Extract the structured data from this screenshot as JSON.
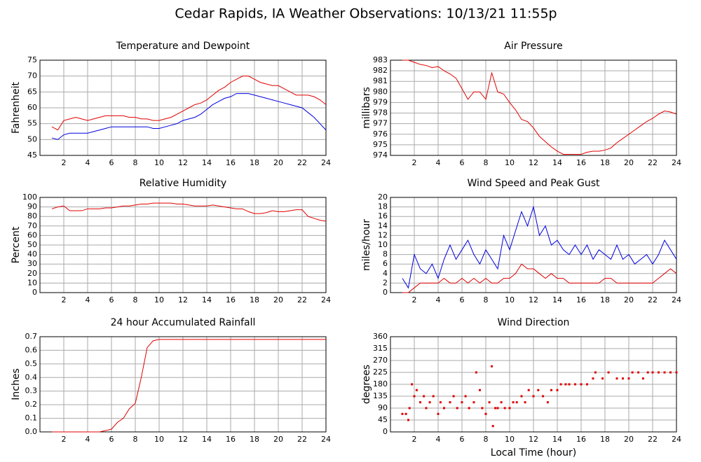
{
  "title": "Cedar Rapids, IA Weather Observations: 10/13/21 11:55p",
  "chart_data": [
    {
      "type": "line",
      "title": "Temperature and Dewpoint",
      "ylabel": "Fahrenheit",
      "x": [
        1,
        1.5,
        2,
        2.5,
        3,
        3.5,
        4,
        4.5,
        5,
        5.5,
        6,
        6.5,
        7,
        7.5,
        8,
        8.5,
        9,
        9.5,
        10,
        10.5,
        11,
        11.5,
        12,
        12.5,
        13,
        13.5,
        14,
        14.5,
        15,
        15.5,
        16,
        16.5,
        17,
        17.5,
        18,
        18.5,
        19,
        19.5,
        20,
        20.5,
        21,
        21.5,
        22,
        22.5,
        23,
        23.5,
        24
      ],
      "series": [
        {
          "color": "#e00000",
          "values": [
            54,
            53,
            56,
            56.5,
            57,
            56.5,
            56,
            56.5,
            57,
            57.5,
            57.5,
            57.5,
            57.5,
            57,
            57,
            56.5,
            56.5,
            56,
            56,
            56.5,
            57,
            58,
            59,
            60,
            61,
            61.5,
            62.5,
            64,
            65.5,
            66.5,
            68,
            69,
            70,
            70,
            69,
            68,
            67.5,
            67,
            67,
            66,
            65,
            64,
            64,
            64,
            63.5,
            62.5,
            61
          ]
        },
        {
          "color": "#0000e0",
          "values": [
            50.5,
            50,
            51.5,
            52,
            52,
            52,
            52,
            52.5,
            53,
            53.5,
            54,
            54,
            54,
            54,
            54,
            54,
            54,
            53.5,
            53.5,
            54,
            54.5,
            55,
            56,
            56.5,
            57,
            58,
            59.5,
            61,
            62,
            63,
            63.5,
            64.5,
            64.5,
            64.5,
            64,
            63.5,
            63,
            62.5,
            62,
            61.5,
            61,
            60.5,
            60,
            58.5,
            57,
            55,
            53
          ]
        }
      ],
      "xlim": [
        0,
        24
      ],
      "xticks": [
        2,
        4,
        6,
        8,
        10,
        12,
        14,
        16,
        18,
        20,
        22,
        24
      ],
      "ylim": [
        45,
        75
      ],
      "yticks": [
        45,
        50,
        55,
        60,
        65,
        70,
        75
      ],
      "grid": true
    },
    {
      "type": "line",
      "title": "Air Pressure",
      "ylabel": "millibars",
      "x": [
        1,
        1.5,
        2,
        2.5,
        3,
        3.5,
        4,
        4.5,
        5,
        5.5,
        6,
        6.5,
        7,
        7.5,
        8,
        8.5,
        9,
        9.5,
        10,
        10.5,
        11,
        11.5,
        12,
        12.5,
        13,
        13.5,
        14,
        14.5,
        15,
        15.5,
        16,
        16.5,
        17,
        17.5,
        18,
        18.5,
        19,
        19.5,
        20,
        20.5,
        21,
        21.5,
        22,
        22.5,
        23,
        23.5,
        24
      ],
      "series": [
        {
          "color": "#e00000",
          "values": [
            983,
            983,
            982.8,
            982.6,
            982.5,
            982.3,
            982.4,
            982,
            981.7,
            981.3,
            980.3,
            979.3,
            980,
            980,
            979.3,
            981.8,
            980,
            979.8,
            979,
            978.3,
            977.4,
            977.2,
            976.6,
            975.8,
            975.3,
            974.8,
            974.4,
            974.1,
            974.1,
            974.1,
            974.1,
            974.3,
            974.4,
            974.4,
            974.5,
            974.7,
            975.2,
            975.6,
            976,
            976.4,
            976.8,
            977.2,
            977.5,
            977.9,
            978.2,
            978.1,
            977.9
          ]
        }
      ],
      "xlim": [
        0,
        24
      ],
      "xticks": [
        2,
        4,
        6,
        8,
        10,
        12,
        14,
        16,
        18,
        20,
        22,
        24
      ],
      "ylim": [
        974,
        983
      ],
      "yticks": [
        974,
        975,
        976,
        977,
        978,
        979,
        980,
        981,
        982,
        983
      ],
      "grid": true
    },
    {
      "type": "line",
      "title": "Relative Humidity",
      "ylabel": "Percent",
      "x": [
        1,
        1.5,
        2,
        2.5,
        3,
        3.5,
        4,
        4.5,
        5,
        5.5,
        6,
        6.5,
        7,
        7.5,
        8,
        8.5,
        9,
        9.5,
        10,
        10.5,
        11,
        11.5,
        12,
        12.5,
        13,
        13.5,
        14,
        14.5,
        15,
        15.5,
        16,
        16.5,
        17,
        17.5,
        18,
        18.5,
        19,
        19.5,
        20,
        20.5,
        21,
        21.5,
        22,
        22.5,
        23,
        23.5,
        24
      ],
      "series": [
        {
          "color": "#e00000",
          "values": [
            88,
            90,
            91,
            86,
            86,
            86,
            88,
            88,
            88,
            89,
            89,
            90,
            91,
            91,
            92,
            93,
            93,
            94,
            94,
            94,
            94,
            93,
            93,
            92,
            91,
            91,
            91,
            92,
            91,
            90,
            89,
            88,
            88,
            85,
            83,
            83,
            84,
            86,
            85,
            85,
            86,
            87,
            87,
            80,
            78,
            76,
            75
          ]
        }
      ],
      "xlim": [
        0,
        24
      ],
      "xticks": [
        2,
        4,
        6,
        8,
        10,
        12,
        14,
        16,
        18,
        20,
        22,
        24
      ],
      "ylim": [
        0,
        100
      ],
      "yticks": [
        0,
        10,
        20,
        30,
        40,
        50,
        60,
        70,
        80,
        90,
        100
      ],
      "grid": true
    },
    {
      "type": "line",
      "title": "Wind Speed and Peak Gust",
      "ylabel": "miles/hour",
      "x": [
        1,
        1.5,
        2,
        2.5,
        3,
        3.5,
        4,
        4.5,
        5,
        5.5,
        6,
        6.5,
        7,
        7.5,
        8,
        8.5,
        9,
        9.5,
        10,
        10.5,
        11,
        11.5,
        12,
        12.5,
        13,
        13.5,
        14,
        14.5,
        15,
        15.5,
        16,
        16.5,
        17,
        17.5,
        18,
        18.5,
        19,
        19.5,
        20,
        20.5,
        21,
        21.5,
        22,
        22.5,
        23,
        23.5,
        24
      ],
      "series": [
        {
          "color": "#0000e0",
          "values": [
            3,
            1,
            8,
            5,
            4,
            6,
            3,
            7,
            10,
            7,
            9,
            11,
            8,
            6,
            9,
            7,
            5,
            12,
            9,
            13,
            17,
            14,
            18,
            12,
            14,
            10,
            11,
            9,
            8,
            10,
            8,
            10,
            7,
            9,
            8,
            7,
            10,
            7,
            8,
            6,
            7,
            8,
            6,
            8,
            11,
            9,
            7
          ]
        },
        {
          "color": "#e00000",
          "values": [
            0,
            0,
            1,
            2,
            2,
            2,
            2,
            3,
            2,
            2,
            3,
            2,
            3,
            2,
            3,
            2,
            2,
            3,
            3,
            4,
            6,
            5,
            5,
            4,
            3,
            4,
            3,
            3,
            2,
            2,
            2,
            2,
            2,
            2,
            3,
            3,
            2,
            2,
            2,
            2,
            2,
            2,
            2,
            3,
            4,
            5,
            4
          ]
        }
      ],
      "xlim": [
        0,
        24
      ],
      "xticks": [
        2,
        4,
        6,
        8,
        10,
        12,
        14,
        16,
        18,
        20,
        22,
        24
      ],
      "ylim": [
        0,
        20
      ],
      "yticks": [
        0,
        2,
        4,
        6,
        8,
        10,
        12,
        14,
        16,
        18,
        20
      ],
      "grid": true
    },
    {
      "type": "line",
      "title": "24 hour Accumulated Rainfall",
      "ylabel": "Inches",
      "x": [
        1,
        1.5,
        2,
        2.5,
        3,
        3.5,
        4,
        4.5,
        5,
        5.5,
        6,
        6.5,
        7,
        7.5,
        8,
        8.5,
        9,
        9.5,
        10,
        10.5,
        11,
        11.5,
        12,
        12.5,
        13,
        13.5,
        14,
        14.5,
        15,
        15.5,
        16,
        16.5,
        17,
        17.5,
        18,
        18.5,
        19,
        19.5,
        20,
        20.5,
        21,
        21.5,
        22,
        22.5,
        23,
        23.5,
        24
      ],
      "series": [
        {
          "color": "#e00000",
          "values": [
            0,
            0,
            0,
            0,
            0,
            0,
            0,
            0,
            0,
            0.01,
            0.02,
            0.07,
            0.1,
            0.17,
            0.21,
            0.4,
            0.62,
            0.67,
            0.68,
            0.68,
            0.68,
            0.68,
            0.68,
            0.68,
            0.68,
            0.68,
            0.68,
            0.68,
            0.68,
            0.68,
            0.68,
            0.68,
            0.68,
            0.68,
            0.68,
            0.68,
            0.68,
            0.68,
            0.68,
            0.68,
            0.68,
            0.68,
            0.68,
            0.68,
            0.68,
            0.68,
            0.68
          ]
        }
      ],
      "xlim": [
        0,
        24
      ],
      "xticks": [
        2,
        4,
        6,
        8,
        10,
        12,
        14,
        16,
        18,
        20,
        22,
        24
      ],
      "ylim": [
        0,
        0.7
      ],
      "yticks": [
        {
          "value": 0,
          "label": "0.0"
        },
        0.1,
        0.2,
        0.3,
        0.4,
        0.5,
        0.6,
        0.7
      ],
      "grid": true
    },
    {
      "type": "scatter",
      "title": "Wind Direction",
      "ylabel": "degrees",
      "xlabel": "Local Time (hour)",
      "x": [
        1,
        1.3,
        1.5,
        1.6,
        1.8,
        2,
        2.2,
        2.5,
        2.8,
        3,
        3.3,
        3.6,
        4,
        4.2,
        4.5,
        5,
        5.3,
        5.6,
        6,
        6.3,
        6.6,
        7,
        7.2,
        7.5,
        7.7,
        8,
        8.3,
        8.5,
        8.6,
        8.8,
        9,
        9.3,
        9.6,
        10,
        10.3,
        10.6,
        11,
        11.3,
        11.6,
        12,
        12.4,
        12.8,
        13.2,
        13.5,
        14,
        14.3,
        14.7,
        15,
        15.5,
        16,
        16.5,
        17,
        17.2,
        17.8,
        18.3,
        19,
        19.5,
        20,
        20.3,
        20.8,
        21.2,
        21.6,
        22,
        22.5,
        23,
        23.5,
        24
      ],
      "series": [
        {
          "color": "#e00000",
          "values": [
            68,
            68,
            45,
            90,
            180,
            135,
            158,
            112,
            135,
            90,
            112,
            135,
            68,
            112,
            90,
            112,
            135,
            90,
            112,
            135,
            90,
            112,
            225,
            158,
            90,
            68,
            112,
            248,
            22,
            90,
            90,
            112,
            90,
            90,
            112,
            112,
            135,
            112,
            158,
            135,
            158,
            135,
            112,
            158,
            158,
            180,
            180,
            180,
            180,
            180,
            180,
            202,
            225,
            202,
            225,
            202,
            202,
            202,
            225,
            225,
            202,
            225,
            225,
            225,
            225,
            225,
            225
          ]
        }
      ],
      "xlim": [
        0,
        24
      ],
      "xticks": [
        2,
        4,
        6,
        8,
        10,
        12,
        14,
        16,
        18,
        20,
        22,
        24
      ],
      "ylim": [
        0,
        360
      ],
      "yticks": [
        0,
        45,
        90,
        135,
        180,
        225,
        270,
        315,
        360
      ],
      "grid": true
    }
  ]
}
